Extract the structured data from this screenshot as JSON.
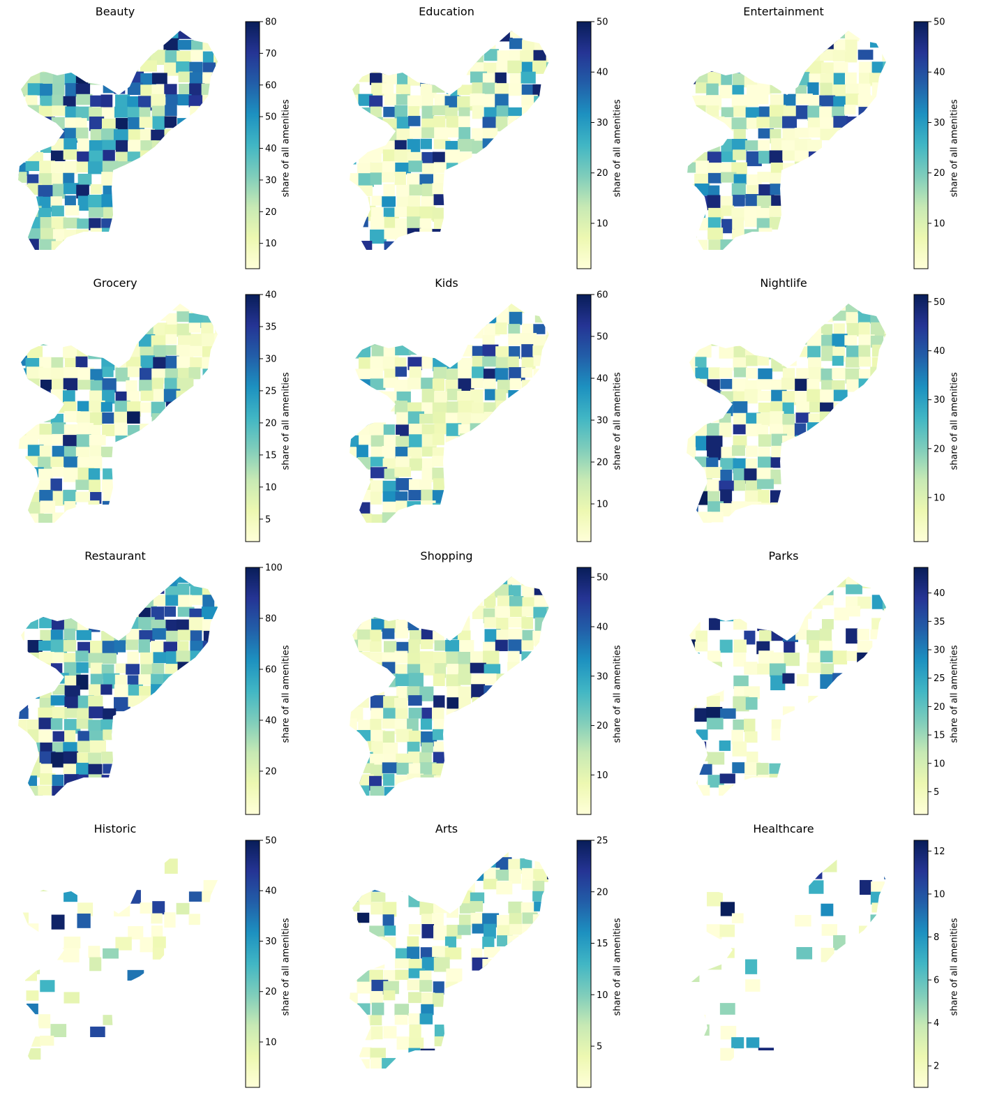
{
  "chart_data": [
    {
      "type": "heatmap",
      "title": "Beauty",
      "colorbar": {
        "label": "share of all amenities",
        "ticks": [
          10,
          20,
          30,
          40,
          50,
          60,
          70,
          80
        ],
        "range": [
          2,
          80
        ]
      },
      "colormap": "YlGnBu"
    },
    {
      "type": "heatmap",
      "title": "Education",
      "colorbar": {
        "label": "share of all amenities",
        "ticks": [
          10,
          20,
          30,
          40,
          50
        ],
        "range": [
          1,
          50
        ]
      },
      "colormap": "YlGnBu"
    },
    {
      "type": "heatmap",
      "title": "Entertainment",
      "colorbar": {
        "label": "share of all amenities",
        "ticks": [
          10,
          20,
          30,
          40,
          50
        ],
        "range": [
          1,
          50
        ]
      },
      "colormap": "YlGnBu"
    },
    {
      "type": "heatmap",
      "title": "Grocery",
      "colorbar": {
        "label": "share of all amenities",
        "ticks": [
          5,
          10,
          15,
          20,
          25,
          30,
          35,
          40
        ],
        "range": [
          1.5,
          40
        ]
      },
      "colormap": "YlGnBu"
    },
    {
      "type": "heatmap",
      "title": "Kids",
      "colorbar": {
        "label": "share of all amenities",
        "ticks": [
          10,
          20,
          30,
          40,
          50,
          60
        ],
        "range": [
          1,
          60
        ]
      },
      "colormap": "YlGnBu"
    },
    {
      "type": "heatmap",
      "title": "Nightlife",
      "colorbar": {
        "label": "share of all amenities",
        "ticks": [
          10,
          20,
          30,
          40,
          50
        ],
        "range": [
          1,
          51.5
        ]
      },
      "colormap": "YlGnBu"
    },
    {
      "type": "heatmap",
      "title": "Restaurant",
      "colorbar": {
        "label": "share of all amenities",
        "ticks": [
          20,
          40,
          60,
          80,
          100
        ],
        "range": [
          3,
          100
        ]
      },
      "colormap": "YlGnBu"
    },
    {
      "type": "heatmap",
      "title": "Shopping",
      "colorbar": {
        "label": "share of all amenities",
        "ticks": [
          10,
          20,
          30,
          40,
          50
        ],
        "range": [
          2,
          52
        ]
      },
      "colormap": "YlGnBu"
    },
    {
      "type": "heatmap",
      "title": "Parks",
      "colorbar": {
        "label": "share of all amenities",
        "ticks": [
          5,
          10,
          15,
          20,
          25,
          30,
          35,
          40
        ],
        "range": [
          1,
          44.5
        ]
      },
      "colormap": "YlGnBu"
    },
    {
      "type": "heatmap",
      "title": "Historic",
      "colorbar": {
        "label": "share of all amenities",
        "ticks": [
          10,
          20,
          30,
          40,
          50
        ],
        "range": [
          1,
          50
        ]
      },
      "colormap": "YlGnBu"
    },
    {
      "type": "heatmap",
      "title": "Arts",
      "colorbar": {
        "label": "share of all amenities",
        "ticks": [
          5,
          10,
          15,
          20,
          25
        ],
        "range": [
          1,
          25
        ]
      },
      "colormap": "YlGnBu"
    },
    {
      "type": "heatmap",
      "title": "Healthcare",
      "colorbar": {
        "label": "share of all amenities",
        "ticks": [
          2,
          4,
          6,
          8,
          10,
          12
        ],
        "range": [
          1,
          12.5
        ]
      },
      "colormap": "YlGnBu"
    }
  ]
}
